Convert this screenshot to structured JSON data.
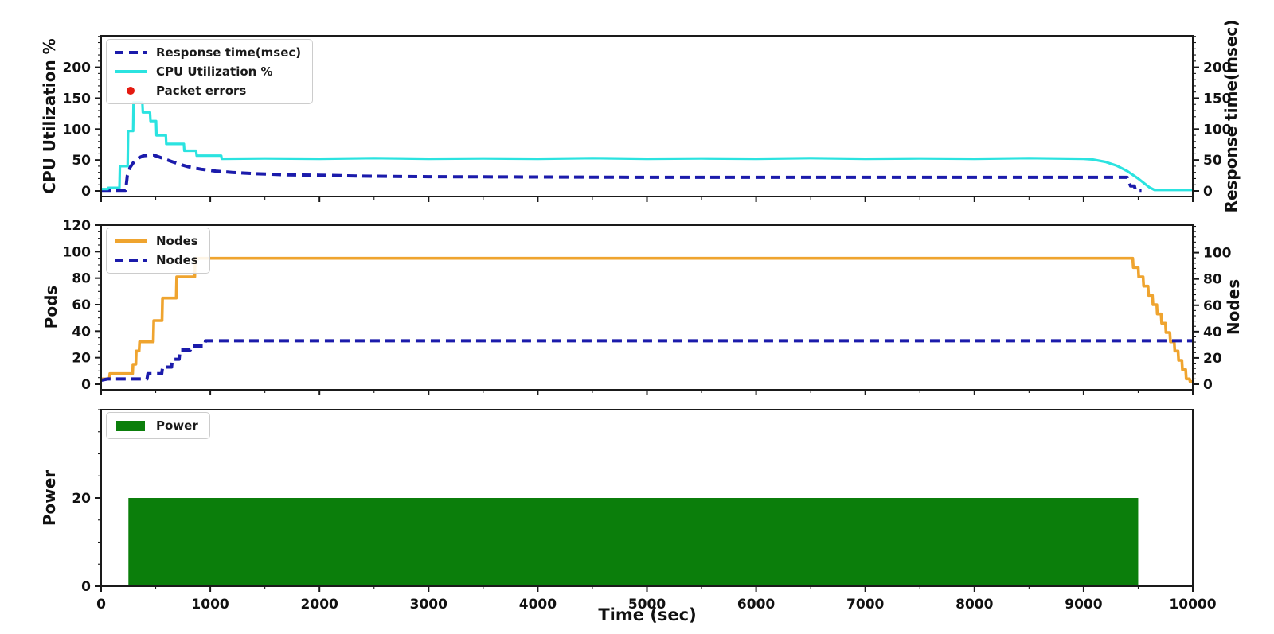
{
  "figure": {
    "background": "#ffffff",
    "x_axis_title": "Time (sec)"
  },
  "colors": {
    "cyan": "#2be3e0",
    "blue": "#1b1bab",
    "orange": "#efa42f",
    "green": "#0b7e0b",
    "red": "#e41a10",
    "spine": "#1a1a1a"
  },
  "legends": {
    "top": [
      {
        "label": "Response time(msec)",
        "swatch": "dash",
        "color": "#1b1bab"
      },
      {
        "label": "CPU Utilization %",
        "swatch": "line",
        "color": "#2be3e0"
      },
      {
        "label": "Packet errors",
        "swatch": "dot",
        "color": "#e41a10"
      }
    ],
    "middle": [
      {
        "label": "Nodes",
        "swatch": "line",
        "color": "#efa42f"
      },
      {
        "label": "Nodes",
        "swatch": "dash",
        "color": "#1b1bab"
      }
    ],
    "bottom": [
      {
        "label": "Power",
        "swatch": "patch",
        "color": "#0b7e0b"
      }
    ]
  },
  "chart_data": [
    {
      "type": "line",
      "title": "",
      "ylabel_left": "CPU Utilization %",
      "ylabel_right": "Response time(msec)",
      "xlim": [
        0,
        10000
      ],
      "ylim_left": [
        0,
        250
      ],
      "ylim_right": [
        0,
        250
      ],
      "yticks_left": [
        0,
        50,
        100,
        150,
        200
      ],
      "yticks_right": [
        0,
        50,
        100,
        150,
        200
      ],
      "yminor_left": 10,
      "yminor_right": 10,
      "series": [
        {
          "key": "response-time",
          "name": "Response time(msec)",
          "color": "#1b1bab",
          "style": "dashed",
          "width": 4,
          "yaxis": "right",
          "points": [
            [
              0,
              1
            ],
            [
              225,
              1
            ],
            [
              240,
              25
            ],
            [
              265,
              38
            ],
            [
              300,
              47
            ],
            [
              340,
              53
            ],
            [
              390,
              57
            ],
            [
              480,
              58
            ],
            [
              560,
              53
            ],
            [
              640,
              48
            ],
            [
              720,
              43
            ],
            [
              800,
              39
            ],
            [
              920,
              35
            ],
            [
              1050,
              32
            ],
            [
              1200,
              30
            ],
            [
              1400,
              28
            ],
            [
              1700,
              26
            ],
            [
              2000,
              25.5
            ],
            [
              2400,
              24
            ],
            [
              3000,
              23
            ],
            [
              4000,
              22.5
            ],
            [
              5000,
              22
            ],
            [
              6500,
              22
            ],
            [
              8000,
              22
            ],
            [
              9400,
              22
            ],
            [
              9430,
              8
            ],
            [
              9465,
              8
            ],
            [
              9475,
              1
            ],
            [
              9530,
              1
            ]
          ]
        },
        {
          "key": "cpu-utilization",
          "name": "CPU Utilization %",
          "color": "#2be3e0",
          "style": "solid",
          "width": 3.2,
          "yaxis": "left",
          "points": [
            [
              0,
              3
            ],
            [
              60,
              3
            ],
            [
              65,
              5
            ],
            [
              168,
              5
            ],
            [
              172,
              40
            ],
            [
              243,
              40
            ],
            [
              247,
              97
            ],
            [
              293,
              97
            ],
            [
              297,
              143
            ],
            [
              378,
              143
            ],
            [
              382,
              127
            ],
            [
              448,
              127
            ],
            [
              452,
              113
            ],
            [
              503,
              113
            ],
            [
              507,
              90
            ],
            [
              593,
              90
            ],
            [
              597,
              76
            ],
            [
              758,
              76
            ],
            [
              762,
              65
            ],
            [
              870,
              65
            ],
            [
              875,
              57
            ],
            [
              1100,
              57
            ],
            [
              1105,
              52
            ],
            [
              1500,
              52.5
            ],
            [
              2000,
              52
            ],
            [
              2500,
              53
            ],
            [
              3000,
              52
            ],
            [
              3500,
              52.5
            ],
            [
              4000,
              52
            ],
            [
              4500,
              53
            ],
            [
              5000,
              52
            ],
            [
              5500,
              52.5
            ],
            [
              6000,
              52
            ],
            [
              6500,
              53
            ],
            [
              7000,
              52
            ],
            [
              7500,
              52.5
            ],
            [
              8000,
              52
            ],
            [
              8500,
              53
            ],
            [
              9000,
              52
            ],
            [
              9080,
              51
            ],
            [
              9200,
              47
            ],
            [
              9300,
              41
            ],
            [
              9400,
              32
            ],
            [
              9500,
              20
            ],
            [
              9600,
              6
            ],
            [
              9650,
              1.5
            ],
            [
              10000,
              1.5
            ]
          ]
        },
        {
          "key": "packet-errors",
          "name": "Packet errors",
          "color": "#e41a10",
          "style": "scatter",
          "yaxis": "left",
          "points": []
        }
      ]
    },
    {
      "type": "line",
      "title": "",
      "ylabel_left": "Pods",
      "ylabel_right": "Nodes",
      "xlim": [
        0,
        10000
      ],
      "ylim_left": [
        0,
        120
      ],
      "ylim_right": [
        0,
        120
      ],
      "yticks_left": [
        0,
        20,
        40,
        60,
        80,
        100,
        120
      ],
      "yticks_right": [
        0,
        20,
        40,
        60,
        80,
        100
      ],
      "yminor_left": 5,
      "yminor_right": 4,
      "series": [
        {
          "key": "pods-step",
          "name": "Nodes",
          "color": "#efa42f",
          "style": "solid",
          "width": 3.6,
          "yaxis": "left",
          "points": [
            [
              0,
              4
            ],
            [
              75,
              4
            ],
            [
              80,
              8
            ],
            [
              288,
              8
            ],
            [
              292,
              15
            ],
            [
              318,
              15
            ],
            [
              322,
              25
            ],
            [
              348,
              25
            ],
            [
              352,
              32
            ],
            [
              478,
              32
            ],
            [
              482,
              48
            ],
            [
              558,
              48
            ],
            [
              562,
              65
            ],
            [
              688,
              65
            ],
            [
              692,
              81
            ],
            [
              858,
              81
            ],
            [
              862,
              95
            ],
            [
              9450,
              95
            ],
            [
              9455,
              88
            ],
            [
              9500,
              88
            ],
            [
              9505,
              81
            ],
            [
              9545,
              81
            ],
            [
              9550,
              74
            ],
            [
              9590,
              74
            ],
            [
              9595,
              67
            ],
            [
              9630,
              67
            ],
            [
              9635,
              60
            ],
            [
              9670,
              60
            ],
            [
              9675,
              53
            ],
            [
              9710,
              53
            ],
            [
              9715,
              46
            ],
            [
              9750,
              46
            ],
            [
              9755,
              39
            ],
            [
              9790,
              39
            ],
            [
              9795,
              32
            ],
            [
              9830,
              32
            ],
            [
              9835,
              25
            ],
            [
              9865,
              25
            ],
            [
              9870,
              18
            ],
            [
              9900,
              18
            ],
            [
              9905,
              11
            ],
            [
              9935,
              11
            ],
            [
              9940,
              4
            ],
            [
              9970,
              4
            ],
            [
              9975,
              2
            ],
            [
              9995,
              2
            ]
          ]
        },
        {
          "key": "nodes-step",
          "name": "Nodes",
          "color": "#1b1bab",
          "style": "dashed",
          "width": 4,
          "yaxis": "right",
          "points": [
            [
              0,
              3
            ],
            [
              60,
              4
            ],
            [
              420,
              4
            ],
            [
              428,
              8
            ],
            [
              555,
              8
            ],
            [
              563,
              13
            ],
            [
              645,
              13
            ],
            [
              653,
              19
            ],
            [
              715,
              19
            ],
            [
              723,
              26
            ],
            [
              818,
              26
            ],
            [
              826,
              29
            ],
            [
              948,
              29
            ],
            [
              956,
              33
            ],
            [
              10000,
              33
            ]
          ]
        }
      ]
    },
    {
      "type": "bar",
      "title": "",
      "ylabel_left": "Power",
      "xlim": [
        0,
        10000
      ],
      "ylim_left": [
        0,
        40
      ],
      "yticks_left": [
        0,
        20
      ],
      "yminor_left": 5,
      "series": [
        {
          "key": "power-bar",
          "name": "Power",
          "color": "#0b7e0b",
          "style": "bar",
          "yaxis": "left",
          "bar": {
            "x_start": 250,
            "x_end": 9500,
            "value": 20
          }
        }
      ]
    }
  ],
  "x_axis": {
    "title": "Time (sec)",
    "ticks": [
      0,
      1000,
      2000,
      3000,
      4000,
      5000,
      6000,
      7000,
      8000,
      9000,
      10000
    ],
    "minor_step": 500,
    "lim": [
      0,
      10000
    ]
  }
}
